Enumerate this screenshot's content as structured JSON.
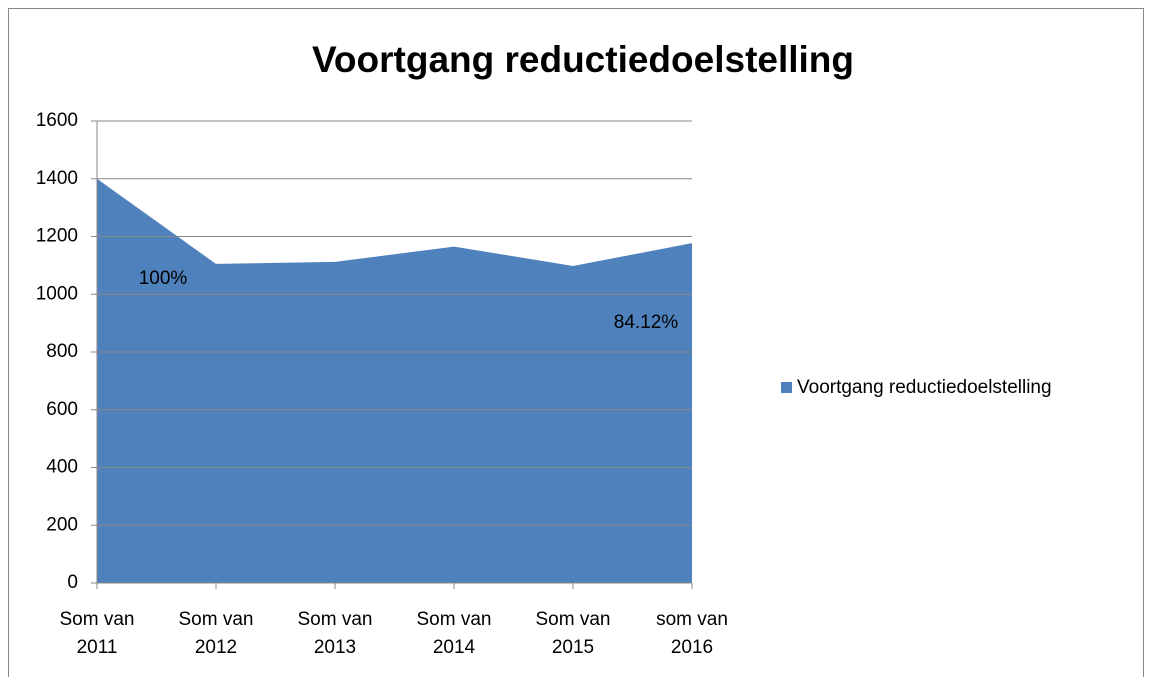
{
  "chart_data": {
    "type": "area",
    "title": "Voortgang reductiedoelstelling",
    "categories": [
      "Som van 2011",
      "Som van 2012",
      "Som van 2013",
      "Som van 2014",
      "Som van 2015",
      "som van 2016"
    ],
    "series": [
      {
        "name": "Voortgang reductiedoelstelling",
        "color": "#4f81bd",
        "values": [
          1400,
          1105,
          1112,
          1165,
          1098,
          1177
        ]
      }
    ],
    "annotations": [
      {
        "text": "100%",
        "category": "Som van 2011"
      },
      {
        "text": "84.12%",
        "category": "som van 2016"
      }
    ],
    "ylim": [
      0,
      1600
    ],
    "yticks": [
      0,
      200,
      400,
      600,
      800,
      1000,
      1200,
      1400,
      1600
    ],
    "grid": true,
    "legend": "right"
  }
}
